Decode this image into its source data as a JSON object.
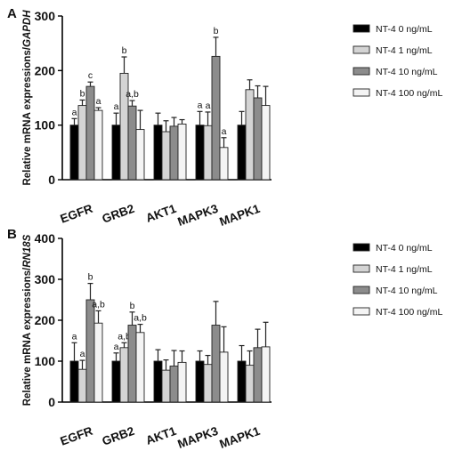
{
  "colors": {
    "series": [
      "#000000",
      "#d4d4d4",
      "#8c8c8c",
      "#f4f4f4"
    ],
    "stroke": "#222222",
    "axis": "#000000"
  },
  "chart_data": [
    {
      "type": "bar",
      "panel_label": "A",
      "ylabel": "Relative mRNA expressions/GAPDH",
      "ylabel_plain": "Relative mRNA expressions/",
      "ylabel_italic": "GAPDH",
      "ylim": [
        0,
        300
      ],
      "yticks": [
        0,
        100,
        200,
        300
      ],
      "categories": [
        "EGFR",
        "GRB2",
        "AKT1",
        "MAPK3",
        "MAPK1"
      ],
      "legend_position": "right",
      "series": [
        {
          "name": "NT-4 0 ng/mL",
          "values": [
            100,
            100,
            100,
            100,
            100
          ],
          "errors": [
            12,
            22,
            22,
            25,
            25
          ],
          "labels": [
            "a",
            "a",
            "",
            "a",
            ""
          ]
        },
        {
          "name": "NT-4 1 ng/mL",
          "values": [
            136,
            195,
            88,
            99,
            165
          ],
          "errors": [
            10,
            30,
            20,
            25,
            18
          ],
          "labels": [
            "b",
            "b",
            "",
            "a",
            ""
          ]
        },
        {
          "name": "NT-4 10 ng/mL",
          "values": [
            171,
            135,
            98,
            226,
            150
          ],
          "errors": [
            8,
            10,
            16,
            35,
            22
          ],
          "labels": [
            "c",
            "a,b",
            "",
            "b",
            ""
          ]
        },
        {
          "name": "NT-4 100 ng/mL",
          "values": [
            127,
            92,
            102,
            59,
            136
          ],
          "errors": [
            5,
            35,
            8,
            18,
            35
          ],
          "labels": [
            "a",
            "",
            "",
            "a",
            ""
          ]
        }
      ]
    },
    {
      "type": "bar",
      "panel_label": "B",
      "ylabel": "Relative mRNA expressions/RN18S",
      "ylabel_plain": "Relative mRNA expressions/",
      "ylabel_italic": "RN18S",
      "ylim": [
        0,
        400
      ],
      "yticks": [
        0,
        100,
        200,
        300,
        400
      ],
      "categories": [
        "EGFR",
        "GRB2",
        "AKT1",
        "MAPK3",
        "MAPK1"
      ],
      "legend_position": "right",
      "series": [
        {
          "name": "NT-4 0 ng/mL",
          "values": [
            100,
            100,
            100,
            100,
            100
          ],
          "errors": [
            45,
            20,
            28,
            25,
            38
          ],
          "labels": [
            "a",
            "a",
            "",
            "",
            ""
          ]
        },
        {
          "name": "NT-4 1 ng/mL",
          "values": [
            80,
            133,
            78,
            92,
            90
          ],
          "errors": [
            22,
            12,
            25,
            22,
            35
          ],
          "labels": [
            "a",
            "a,b",
            "",
            "",
            ""
          ]
        },
        {
          "name": "NT-4 10 ng/mL",
          "values": [
            250,
            188,
            88,
            188,
            133
          ],
          "errors": [
            40,
            32,
            38,
            58,
            45
          ],
          "labels": [
            "b",
            "b",
            "",
            "",
            ""
          ]
        },
        {
          "name": "NT-4 100 ng/mL",
          "values": [
            193,
            170,
            97,
            122,
            135
          ],
          "errors": [
            30,
            20,
            28,
            62,
            60
          ],
          "labels": [
            "a,b",
            "a,b",
            "",
            "",
            ""
          ]
        }
      ]
    }
  ]
}
